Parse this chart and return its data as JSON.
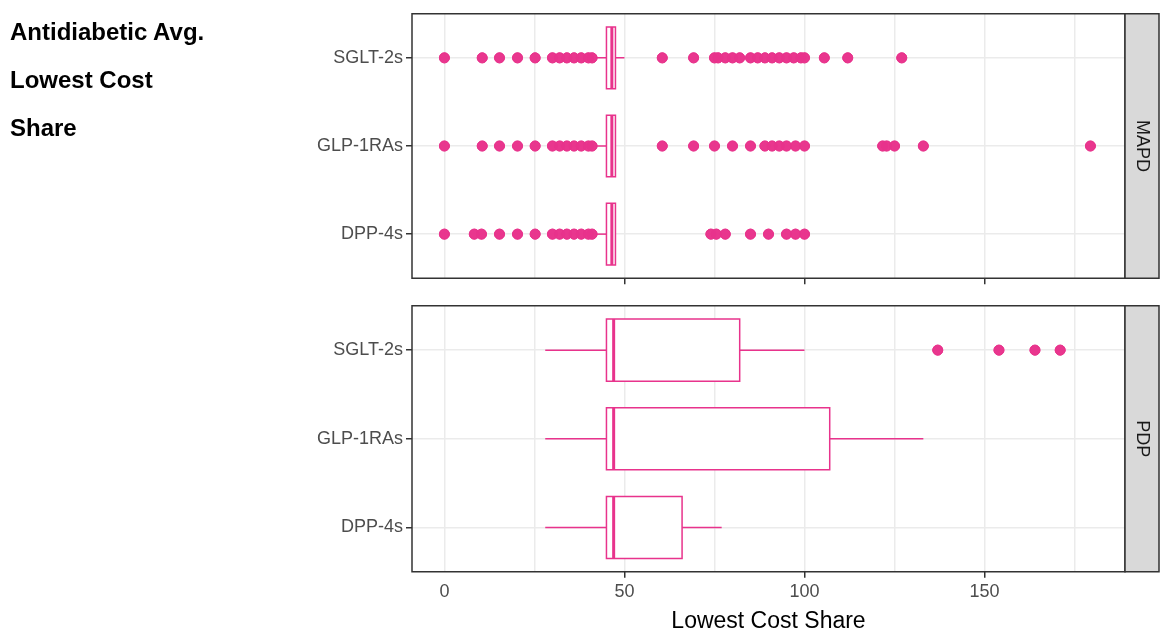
{
  "chart_data": [
    {
      "type": "box",
      "title": "Antidiabetic Avg. Lowest Cost Share",
      "y2label": "MAPD",
      "orientation": "horizontal",
      "tick_labels": "y",
      "grid": true,
      "categories": [
        "SGLT-2s",
        "GLP-1RAs",
        "DPP-4s"
      ],
      "xlim": [
        -9,
        189
      ],
      "xticks": [
        0,
        {
          "value": 25,
          "label": null
        },
        50,
        {
          "value": 75,
          "label": null
        },
        100,
        {
          "value": 125,
          "label": null
        },
        150,
        {
          "value": 175,
          "label": null
        }
      ],
      "series": [
        {
          "color": "#e8338c",
          "boxes": [
            {
              "low": 42,
              "q1": 45,
              "median": 46.5,
              "q3": 47.5,
              "high": 50,
              "outliers": [
                0,
                10.5,
                15.3,
                20.3,
                25.2,
                30,
                32,
                34,
                36,
                38,
                40,
                41,
                60.5,
                69.2,
                75,
                76,
                78,
                80,
                82,
                85,
                87,
                89,
                91,
                93,
                95,
                97,
                99,
                100,
                105.5,
                112,
                127
              ]
            },
            {
              "low": 42,
              "q1": 45,
              "median": 46.5,
              "q3": 47.5,
              "high": 47.5,
              "outliers": [
                0,
                10.5,
                15.3,
                20.3,
                25.2,
                30,
                32,
                34,
                36,
                38,
                40,
                41,
                60.5,
                69.2,
                75,
                80,
                85,
                89,
                91,
                93,
                95,
                97.5,
                100,
                121.7,
                122.8,
                125,
                133,
                179.4
              ]
            },
            {
              "low": 42,
              "q1": 45,
              "median": 46.5,
              "q3": 47.5,
              "high": 47.5,
              "outliers": [
                0,
                8.3,
                10.3,
                15.3,
                20.3,
                25.2,
                30,
                32,
                34,
                36,
                38,
                40,
                41,
                74,
                75.5,
                78,
                85,
                90,
                95,
                97.5,
                100
              ]
            }
          ]
        }
      ]
    },
    {
      "type": "box",
      "y2label": "PDP",
      "xlabel": "Lowest Cost Share",
      "orientation": "horizontal",
      "grid": true,
      "categories": [
        "SGLT-2s",
        "GLP-1RAs",
        "DPP-4s"
      ],
      "xlim": [
        -9,
        189
      ],
      "xticks": [
        0,
        {
          "value": 25,
          "label": null
        },
        50,
        {
          "value": 75,
          "label": null
        },
        100,
        {
          "value": 125,
          "label": null
        },
        150,
        {
          "value": 175,
          "label": null
        }
      ],
      "series": [
        {
          "color": "#e8338c",
          "boxes": [
            {
              "low": 28,
              "q1": 45,
              "median": 47,
              "q3": 82,
              "high": 100,
              "outliers": [
                137,
                154,
                164,
                171
              ]
            },
            {
              "low": 28,
              "q1": 45,
              "median": 47,
              "q3": 107,
              "high": 133
            },
            {
              "low": 28,
              "q1": 45,
              "median": 47,
              "q3": 66,
              "high": 77
            }
          ]
        }
      ]
    }
  ]
}
